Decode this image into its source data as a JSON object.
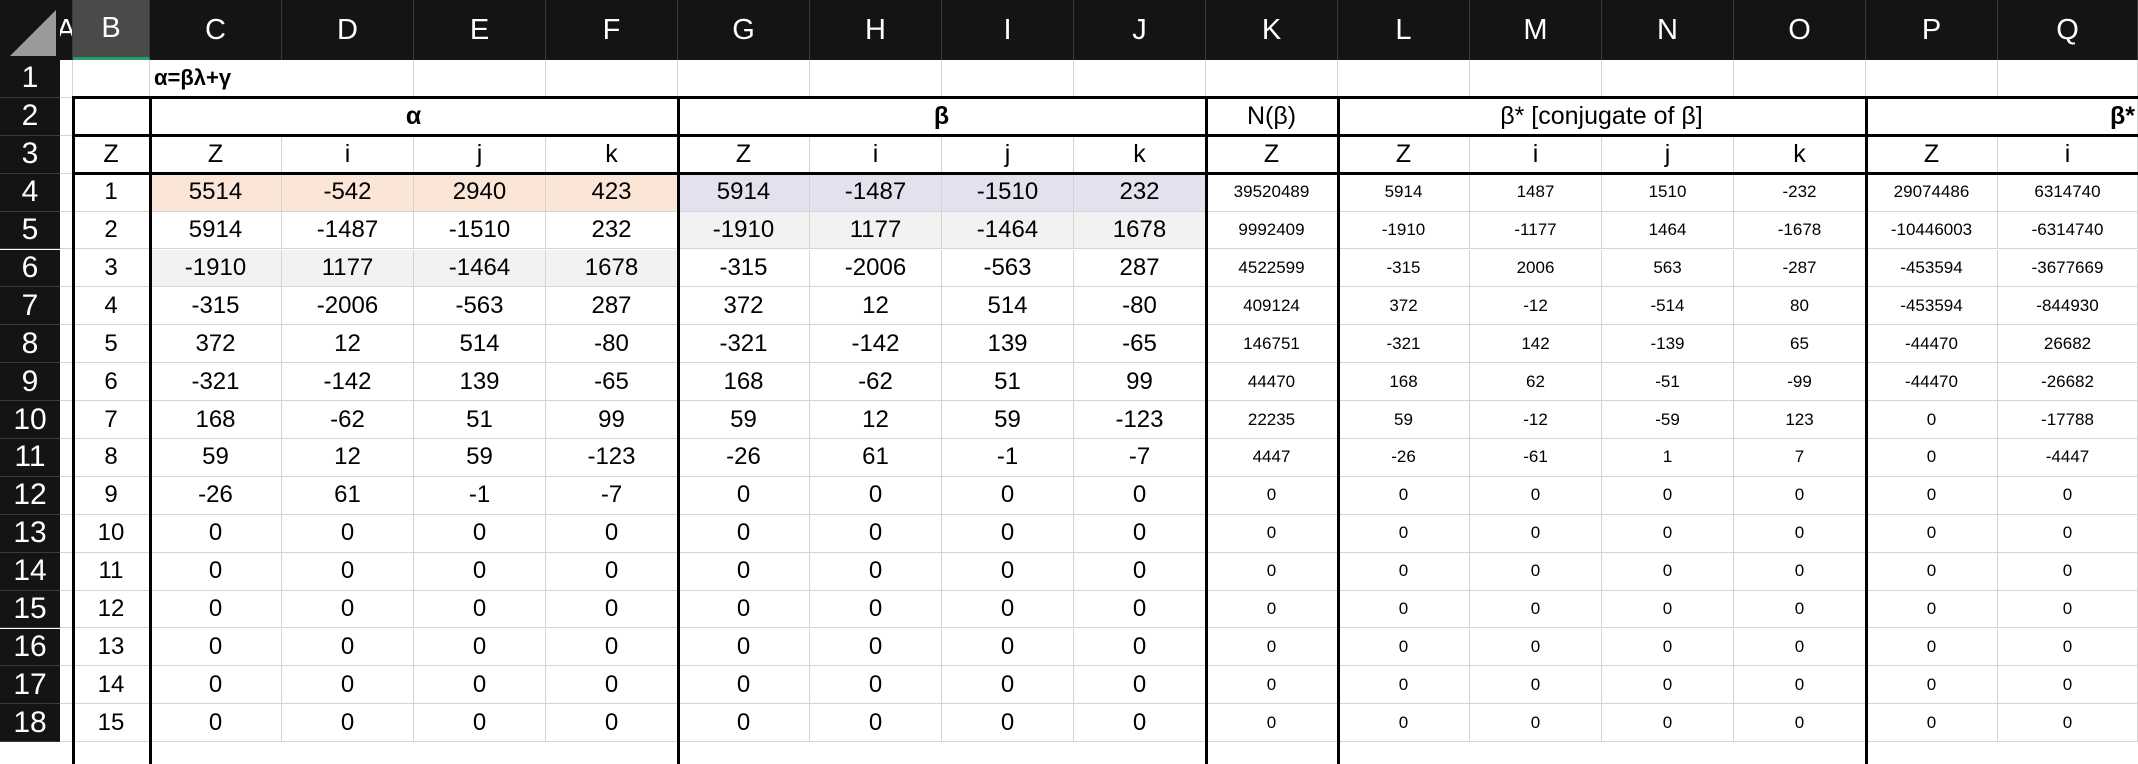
{
  "columns": [
    "A",
    "B",
    "C",
    "D",
    "E",
    "F",
    "G",
    "H",
    "I",
    "J",
    "K",
    "L",
    "M",
    "N",
    "O",
    "P",
    "Q"
  ],
  "row_numbers": [
    1,
    2,
    3,
    4,
    5,
    6,
    7,
    8,
    9,
    10,
    11,
    12,
    13,
    14,
    15,
    16,
    17,
    18
  ],
  "selected_column": "B",
  "formula_label": "α=βλ+γ",
  "groups": [
    {
      "label": "α",
      "from": 2,
      "to": 5,
      "bold": true
    },
    {
      "label": "β",
      "from": 6,
      "to": 9,
      "bold": true
    },
    {
      "label": "N(β)",
      "from": 10,
      "to": 10,
      "bold": false
    },
    {
      "label": "β* [conjugate of β]",
      "from": 11,
      "to": 14,
      "bold": false
    },
    {
      "label": "β*",
      "from": 15,
      "to": 16,
      "bold": true,
      "align": "right"
    }
  ],
  "subheaders": [
    "Z",
    "Z",
    "i",
    "j",
    "k",
    "Z",
    "i",
    "j",
    "k",
    "Z",
    "Z",
    "i",
    "j",
    "k",
    "Z",
    "i"
  ],
  "rows": [
    [
      "1",
      "5514",
      "-542",
      "2940",
      "423",
      "5914",
      "-1487",
      "-1510",
      "232",
      "39520489",
      "5914",
      "1487",
      "1510",
      "-232",
      "29074486",
      "6314740"
    ],
    [
      "2",
      "5914",
      "-1487",
      "-1510",
      "232",
      "-1910",
      "1177",
      "-1464",
      "1678",
      "9992409",
      "-1910",
      "-1177",
      "1464",
      "-1678",
      "-10446003",
      "-6314740"
    ],
    [
      "3",
      "-1910",
      "1177",
      "-1464",
      "1678",
      "-315",
      "-2006",
      "-563",
      "287",
      "4522599",
      "-315",
      "2006",
      "563",
      "-287",
      "-453594",
      "-3677669"
    ],
    [
      "4",
      "-315",
      "-2006",
      "-563",
      "287",
      "372",
      "12",
      "514",
      "-80",
      "409124",
      "372",
      "-12",
      "-514",
      "80",
      "-453594",
      "-844930"
    ],
    [
      "5",
      "372",
      "12",
      "514",
      "-80",
      "-321",
      "-142",
      "139",
      "-65",
      "146751",
      "-321",
      "142",
      "-139",
      "65",
      "-44470",
      "26682"
    ],
    [
      "6",
      "-321",
      "-142",
      "139",
      "-65",
      "168",
      "-62",
      "51",
      "99",
      "44470",
      "168",
      "62",
      "-51",
      "-99",
      "-44470",
      "-26682"
    ],
    [
      "7",
      "168",
      "-62",
      "51",
      "99",
      "59",
      "12",
      "59",
      "-123",
      "22235",
      "59",
      "-12",
      "-59",
      "123",
      "0",
      "-17788"
    ],
    [
      "8",
      "59",
      "12",
      "59",
      "-123",
      "-26",
      "61",
      "-1",
      "-7",
      "4447",
      "-26",
      "-61",
      "1",
      "7",
      "0",
      "-4447"
    ],
    [
      "9",
      "-26",
      "61",
      "-1",
      "-7",
      "0",
      "0",
      "0",
      "0",
      "0",
      "0",
      "0",
      "0",
      "0",
      "0",
      "0"
    ],
    [
      "10",
      "0",
      "0",
      "0",
      "0",
      "0",
      "0",
      "0",
      "0",
      "0",
      "0",
      "0",
      "0",
      "0",
      "0",
      "0"
    ],
    [
      "11",
      "0",
      "0",
      "0",
      "0",
      "0",
      "0",
      "0",
      "0",
      "0",
      "0",
      "0",
      "0",
      "0",
      "0",
      "0"
    ],
    [
      "12",
      "0",
      "0",
      "0",
      "0",
      "0",
      "0",
      "0",
      "0",
      "0",
      "0",
      "0",
      "0",
      "0",
      "0",
      "0"
    ],
    [
      "13",
      "0",
      "0",
      "0",
      "0",
      "0",
      "0",
      "0",
      "0",
      "0",
      "0",
      "0",
      "0",
      "0",
      "0",
      "0"
    ],
    [
      "14",
      "0",
      "0",
      "0",
      "0",
      "0",
      "0",
      "0",
      "0",
      "0",
      "0",
      "0",
      "0",
      "0",
      "0",
      "0"
    ],
    [
      "15",
      "0",
      "0",
      "0",
      "0",
      "0",
      "0",
      "0",
      "0",
      "0",
      "0",
      "0",
      "0",
      "0",
      "0",
      "0"
    ]
  ],
  "colors": {
    "header_bg": "#141414",
    "highlight_alpha_row": "#fbe5d6",
    "highlight_beta_row": "#e3e1ee",
    "highlight_gray": "#f2f2f2",
    "select_accent": "#21a366"
  }
}
